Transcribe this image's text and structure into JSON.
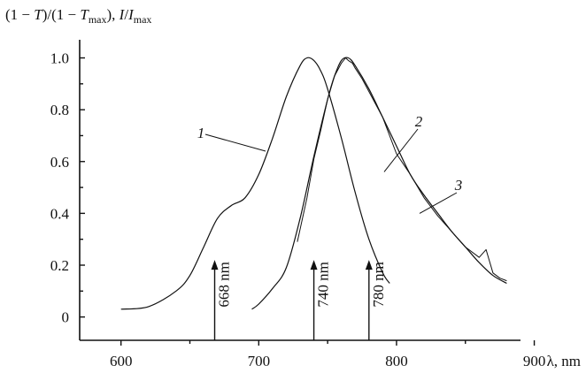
{
  "chart_data": {
    "type": "line",
    "ylabel_parts": [
      "(1 − ",
      "T",
      ")/(1 − ",
      "T",
      "max",
      "), ",
      "I",
      "/",
      "I",
      "max"
    ],
    "xlabel": "λ, nm",
    "xlim": [
      570,
      890
    ],
    "ylim": [
      -0.09,
      1.07
    ],
    "x_ticks": [
      600,
      700,
      800,
      900
    ],
    "x_tick_labels": [
      "600",
      "700",
      "800",
      "900"
    ],
    "y_ticks": [
      0,
      0.2,
      0.4,
      0.6,
      0.8,
      1.0
    ],
    "y_tick_labels": [
      "0",
      "0.2",
      "0.4",
      "0.6",
      "0.8",
      "1.0"
    ],
    "grid": false,
    "series": [
      {
        "name": "1",
        "x": [
          600,
          620,
          640,
          650,
          660,
          670,
          680,
          690,
          700,
          710,
          720,
          730,
          735,
          740,
          745,
          750,
          760,
          770,
          780,
          790,
          795
        ],
        "y": [
          0.03,
          0.04,
          0.1,
          0.16,
          0.27,
          0.38,
          0.43,
          0.46,
          0.55,
          0.69,
          0.85,
          0.97,
          1.0,
          0.99,
          0.95,
          0.88,
          0.69,
          0.48,
          0.3,
          0.17,
          0.13
        ],
        "label": "1"
      },
      {
        "name": "2",
        "x": [
          695,
          700,
          710,
          720,
          730,
          740,
          750,
          755,
          760,
          765,
          770,
          780,
          790,
          800,
          810,
          820,
          830,
          840,
          850,
          860,
          870,
          880
        ],
        "y": [
          0.03,
          0.05,
          0.11,
          0.19,
          0.38,
          0.62,
          0.84,
          0.93,
          0.99,
          1.0,
          0.97,
          0.88,
          0.77,
          0.66,
          0.55,
          0.47,
          0.4,
          0.33,
          0.27,
          0.21,
          0.16,
          0.13
        ],
        "label": "2"
      },
      {
        "name": "3",
        "x": [
          728,
          735,
          740,
          745,
          750,
          755,
          760,
          763,
          765,
          768,
          770,
          775,
          780,
          790,
          800,
          810,
          820,
          830,
          840,
          850,
          860,
          865,
          870,
          875,
          880
        ],
        "y": [
          0.29,
          0.46,
          0.61,
          0.72,
          0.84,
          0.93,
          0.98,
          1.0,
          0.99,
          0.98,
          0.96,
          0.92,
          0.87,
          0.77,
          0.63,
          0.55,
          0.46,
          0.39,
          0.33,
          0.27,
          0.23,
          0.26,
          0.17,
          0.15,
          0.14
        ],
        "label": "3"
      }
    ],
    "annotations": [
      {
        "x": 668,
        "text": "668 nm"
      },
      {
        "x": 740,
        "text": "740 nm"
      },
      {
        "x": 780,
        "text": "780 nm"
      }
    ]
  }
}
